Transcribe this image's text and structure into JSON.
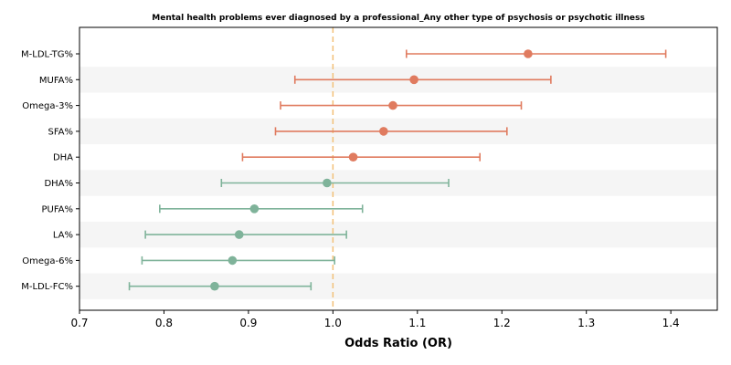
{
  "chart_data": {
    "type": "forest",
    "title": "Mental health problems ever diagnosed by a professional_Any other type of psychosis or psychotic illness",
    "xlabel": "Odds Ratio (OR)",
    "ylabel": "",
    "xlim": [
      0.7,
      1.455
    ],
    "xticks": [
      "0.7",
      "0.8",
      "0.9",
      "1.0",
      "1.1",
      "1.2",
      "1.3",
      "1.4"
    ],
    "reference_line": 1.0,
    "grid": false,
    "colors": {
      "risk": "#E07B5F",
      "protective": "#7FB39A",
      "reference": "#F2C078",
      "band": "#F5F5F5"
    },
    "rows": [
      {
        "label": "M-LDL-TG%",
        "or": 1.231,
        "lower": 1.087,
        "upper": 1.394
      },
      {
        "label": "MUFA%",
        "or": 1.096,
        "lower": 0.955,
        "upper": 1.258
      },
      {
        "label": "Omega-3%",
        "or": 1.071,
        "lower": 0.938,
        "upper": 1.223
      },
      {
        "label": "SFA%",
        "or": 1.06,
        "lower": 0.932,
        "upper": 1.206
      },
      {
        "label": "DHA",
        "or": 1.024,
        "lower": 0.893,
        "upper": 1.174
      },
      {
        "label": "DHA%",
        "or": 0.993,
        "lower": 0.868,
        "upper": 1.137
      },
      {
        "label": "PUFA%",
        "or": 0.907,
        "lower": 0.795,
        "upper": 1.035
      },
      {
        "label": "LA%",
        "or": 0.889,
        "lower": 0.778,
        "upper": 1.016
      },
      {
        "label": "Omega-6%",
        "or": 0.881,
        "lower": 0.774,
        "upper": 1.002
      },
      {
        "label": "M-LDL-FC%",
        "or": 0.86,
        "lower": 0.759,
        "upper": 0.974
      }
    ]
  }
}
